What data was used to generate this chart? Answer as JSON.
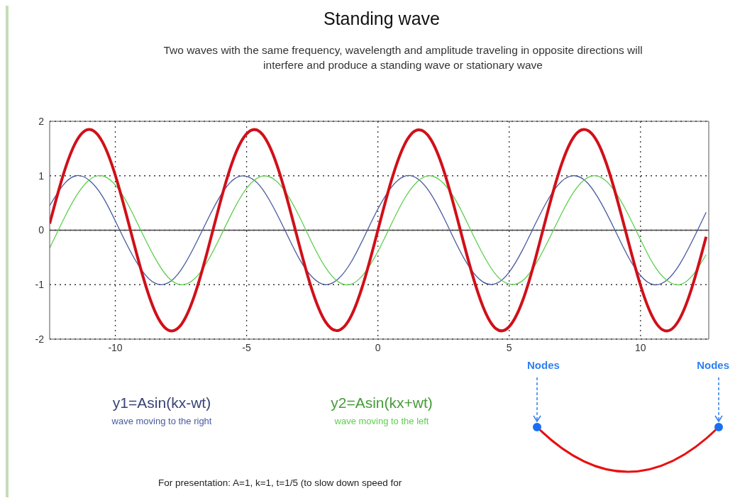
{
  "chart_data": {
    "type": "line",
    "title": "Standing wave",
    "subtitle": "Two waves with the same frequency, wavelength and amplitude traveling in opposite directions will interfere and produce a standing wave or stationary wave",
    "x": [
      -12.5,
      -12,
      -11.5,
      -11,
      -10.5,
      -10,
      -9.5,
      -9,
      -8.5,
      -8,
      -7.5,
      -7,
      -6.5,
      -6,
      -5.5,
      -5,
      -4.5,
      -4,
      -3.5,
      -3,
      -2.5,
      -2,
      -1.5,
      -1,
      -0.5,
      0,
      0.5,
      1,
      1.5,
      2,
      2.5,
      3,
      3.5,
      4,
      4.5,
      5,
      5.5,
      6,
      6.5,
      7,
      7.5,
      8,
      8.5,
      9,
      9.5,
      10,
      10.5,
      11,
      11.5,
      12,
      12.5
    ],
    "series": [
      {
        "name": "y1=Asin(kx-wt)",
        "color": "#4a5a9e",
        "values": [
          0.45,
          0.82,
          1.0,
          0.92,
          0.63,
          0.17,
          -0.32,
          -0.73,
          -0.97,
          -0.97,
          -0.73,
          -0.31,
          0.18,
          0.63,
          0.93,
          0.99,
          0.82,
          0.44,
          -0.04,
          -0.52,
          -0.86,
          -1.0,
          -0.89,
          -0.57,
          -0.1,
          0.39,
          0.78,
          0.99,
          0.95,
          0.68,
          0.24,
          -0.26,
          -0.69,
          -0.95,
          -0.98,
          -0.77,
          -0.37,
          0.12,
          0.58,
          0.9,
          1.0,
          0.86,
          0.5,
          0.03,
          -0.46,
          -0.83,
          -1.0,
          -0.92,
          -0.62,
          -0.17,
          0.33
        ]
      },
      {
        "name": "y2=Asin(kx+wt)",
        "color": "#5fcf4f",
        "values": [
          -0.33,
          0.17,
          0.62,
          0.92,
          1.0,
          0.83,
          0.46,
          -0.03,
          -0.5,
          -0.86,
          -1.0,
          -0.9,
          -0.58,
          -0.12,
          0.37,
          0.77,
          0.98,
          0.95,
          0.69,
          0.26,
          -0.24,
          -0.68,
          -0.95,
          -0.99,
          -0.78,
          -0.39,
          0.1,
          0.57,
          0.89,
          1.0,
          0.86,
          0.52,
          0.04,
          -0.44,
          -0.82,
          -0.99,
          -0.93,
          -0.63,
          -0.18,
          0.31,
          0.73,
          0.97,
          0.97,
          0.73,
          0.32,
          -0.17,
          -0.63,
          -0.92,
          -1.0,
          -0.82,
          -0.45
        ]
      },
      {
        "color": "#d0101a",
        "values": [
          0.12,
          0.99,
          1.62,
          1.85,
          1.63,
          1.01,
          0.14,
          -0.76,
          -1.48,
          -1.83,
          -1.74,
          -1.22,
          -0.4,
          0.52,
          1.31,
          1.77,
          1.81,
          1.4,
          0.65,
          -0.26,
          -1.11,
          -1.68,
          -1.84,
          -1.56,
          -0.89,
          0,
          0.89,
          1.56,
          1.84,
          1.68,
          1.11,
          0.26,
          -0.65,
          -1.4,
          -1.81,
          -1.77,
          -1.31,
          -0.52,
          0.4,
          1.22,
          1.74,
          1.83,
          1.48,
          0.76,
          -0.14,
          -1.01,
          -1.63,
          -1.85,
          -1.62,
          -0.99,
          -0.12
        ]
      }
    ],
    "xlim": [
      -12.5,
      12.6
    ],
    "xticks": [
      -10,
      -5,
      0,
      5,
      10
    ],
    "ylim": [
      -2,
      2
    ],
    "yticks": [
      -2,
      -1,
      0,
      1,
      2
    ],
    "grid": true,
    "ref_lines": [
      {
        "axis": "y",
        "value": 0
      }
    ],
    "annotations": [
      "wave moving to the right",
      "wave moving to the left",
      "For presentation: A=1, k=1, t=1/5 (to slow down speed for",
      "Nodes",
      "Nodes"
    ]
  }
}
